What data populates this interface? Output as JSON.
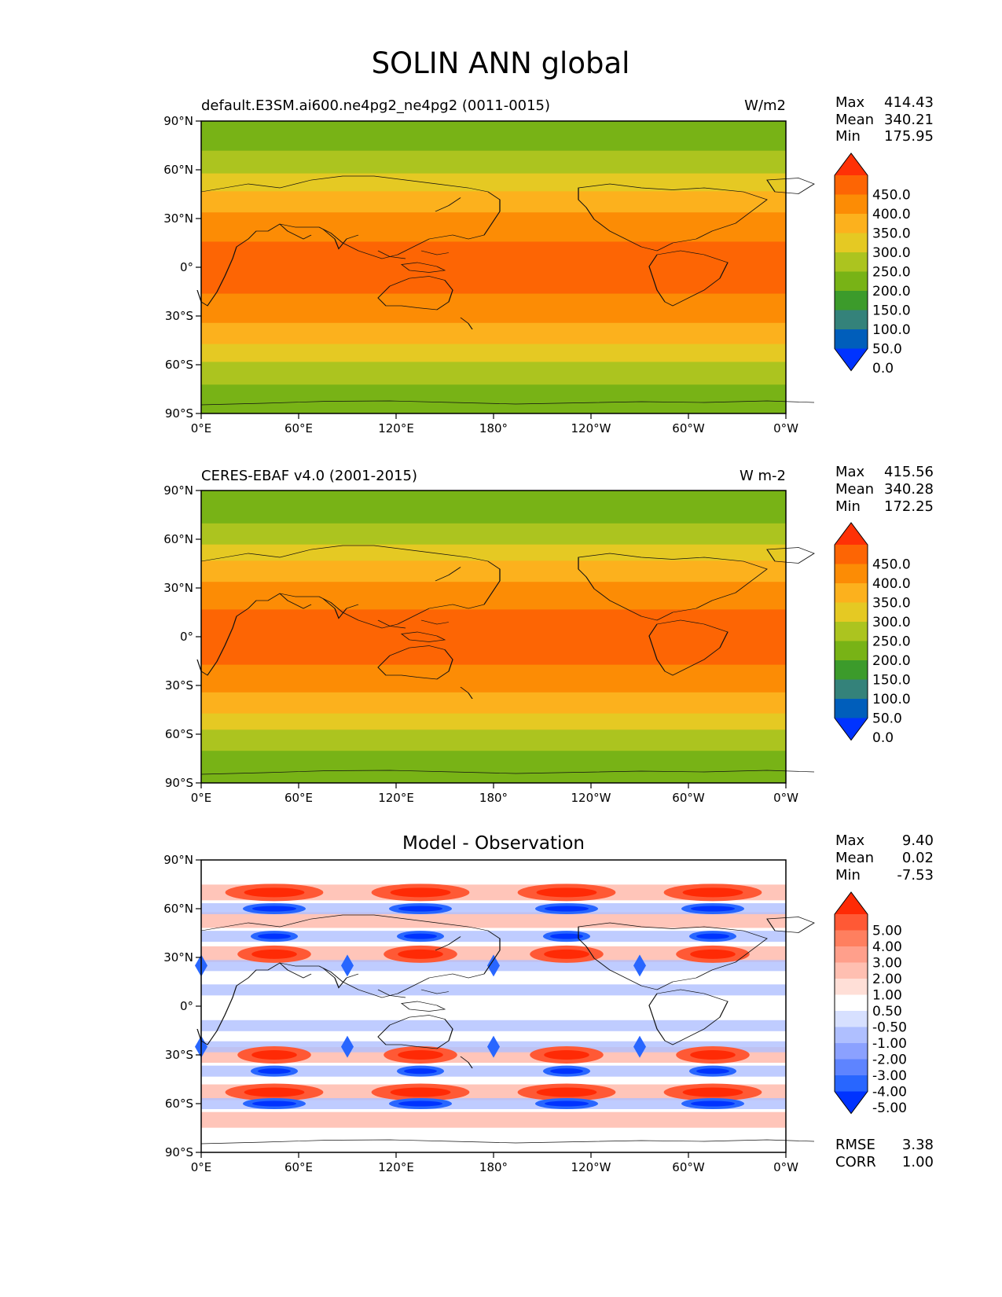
{
  "figure_title": "SOLIN ANN global",
  "colors": {
    "field_levels": [
      "#0033ff",
      "#005ebb",
      "#34827a",
      "#3c9b2b",
      "#78b316",
      "#acc41f",
      "#e5c923",
      "#fcb11d",
      "#fc8c05",
      "#fd6504",
      "#ff3106"
    ],
    "diff_levels": [
      "#0033ff",
      "#2866ff",
      "#5e84ff",
      "#8ba1ff",
      "#afbfff",
      "#d7e0ff",
      "#ffffff",
      "#ffdfd7",
      "#ffbfb1",
      "#ff9f8b",
      "#ff7f5f",
      "#ff5935",
      "#ff2a05"
    ],
    "coastline": "#111111"
  },
  "chart_data": [
    {
      "type": "heatmap",
      "panel": "test",
      "title": "default.E3SM.ai600.ne4pg2_ne4pg2 (0011-0015)",
      "units": "W/m2",
      "stats": {
        "max_label": "Max",
        "max": "414.43",
        "mean_label": "Mean",
        "mean": "340.21",
        "min_label": "Min",
        "min": "175.95"
      },
      "bands": [
        {
          "lat_from": -90,
          "lat_to": -72,
          "level": 4
        },
        {
          "lat_from": -72,
          "lat_to": -58,
          "level": 5
        },
        {
          "lat_from": -58,
          "lat_to": -47,
          "level": 6
        },
        {
          "lat_from": -47,
          "lat_to": -34,
          "level": 7
        },
        {
          "lat_from": -34,
          "lat_to": -16,
          "level": 8
        },
        {
          "lat_from": -16,
          "lat_to": 16,
          "level": 9
        },
        {
          "lat_from": 16,
          "lat_to": 34,
          "level": 8
        },
        {
          "lat_from": 34,
          "lat_to": 47,
          "level": 7
        },
        {
          "lat_from": 47,
          "lat_to": 58,
          "level": 6
        },
        {
          "lat_from": 58,
          "lat_to": 72,
          "level": 5
        },
        {
          "lat_from": 72,
          "lat_to": 90,
          "level": 4
        }
      ]
    },
    {
      "type": "heatmap",
      "panel": "reference",
      "title": "CERES-EBAF v4.0 (2001-2015)",
      "units": "W m-2",
      "stats": {
        "max_label": "Max",
        "max": "415.56",
        "mean_label": "Mean",
        "mean": "340.28",
        "min_label": "Min",
        "min": "172.25"
      },
      "bands": [
        {
          "lat_from": -90,
          "lat_to": -70,
          "level": 4
        },
        {
          "lat_from": -70,
          "lat_to": -57,
          "level": 5
        },
        {
          "lat_from": -57,
          "lat_to": -47,
          "level": 6
        },
        {
          "lat_from": -47,
          "lat_to": -34,
          "level": 7
        },
        {
          "lat_from": -34,
          "lat_to": -17,
          "level": 8
        },
        {
          "lat_from": -17,
          "lat_to": 17,
          "level": 9
        },
        {
          "lat_from": 17,
          "lat_to": 34,
          "level": 8
        },
        {
          "lat_from": 34,
          "lat_to": 47,
          "level": 7
        },
        {
          "lat_from": 47,
          "lat_to": 57,
          "level": 6
        },
        {
          "lat_from": 57,
          "lat_to": 70,
          "level": 5
        },
        {
          "lat_from": 70,
          "lat_to": 90,
          "level": 4
        }
      ]
    },
    {
      "type": "heatmap",
      "panel": "difference",
      "title": "Model - Observation",
      "units": "",
      "stats": {
        "max_label": "Max",
        "max": "9.40",
        "mean_label": "Mean",
        "mean": "0.02",
        "min_label": "Min",
        "min": "-7.53"
      },
      "metrics": {
        "rmse_label": "RMSE",
        "rmse": "3.38",
        "corr_label": "CORR",
        "corr": "1.00"
      },
      "pattern": {
        "period_deg": 90,
        "centers_lon": [
          0,
          90,
          180,
          270
        ],
        "blue_lats": [
          60,
          43,
          25,
          10,
          -12,
          -25,
          -40,
          -60
        ],
        "red_lats": [
          70,
          53,
          32,
          -30,
          -53,
          -70
        ]
      }
    }
  ],
  "axes": {
    "lat_ticks": [
      "90°N",
      "60°N",
      "30°N",
      "0°",
      "30°S",
      "60°S",
      "90°S"
    ],
    "lat_values": [
      90,
      60,
      30,
      0,
      -30,
      -60,
      -90
    ],
    "lon_ticks": [
      "0°E",
      "60°E",
      "120°E",
      "180°",
      "120°W",
      "60°W",
      "0°W"
    ],
    "lon_values": [
      0,
      60,
      120,
      180,
      240,
      300,
      360
    ]
  },
  "colorbars": {
    "field_labels": [
      "450.0",
      "400.0",
      "350.0",
      "300.0",
      "250.0",
      "200.0",
      "150.0",
      "100.0",
      "50.0",
      "0.0"
    ],
    "diff_labels": [
      "5.00",
      "4.00",
      "3.00",
      "2.00",
      "1.00",
      "0.50",
      "-0.50",
      "-1.00",
      "-2.00",
      "-3.00",
      "-4.00",
      "-5.00"
    ]
  }
}
